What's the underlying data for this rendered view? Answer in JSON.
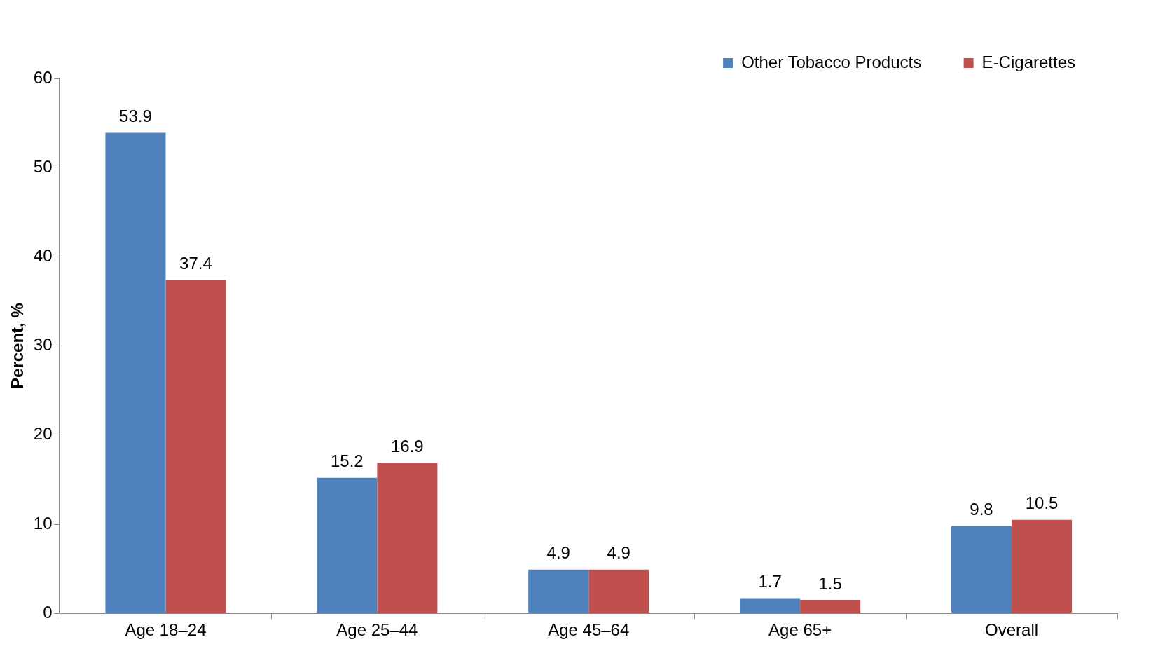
{
  "chart_data": {
    "type": "bar",
    "ylabel": "Percent, %",
    "categories": [
      "Age 18–24",
      "Age 25–44",
      "Age 45–64",
      "Age 65+",
      "Overall"
    ],
    "series": [
      {
        "name": "Other Tobacco Products",
        "color": "#4f81bd",
        "values": [
          53.9,
          15.2,
          4.9,
          1.7,
          9.8
        ]
      },
      {
        "name": "E-Cigarettes",
        "color": "#c0504d",
        "values": [
          37.4,
          16.9,
          4.9,
          1.5,
          10.5
        ]
      }
    ],
    "ylim": [
      0,
      60
    ],
    "yticks": [
      0,
      10,
      20,
      30,
      40,
      50,
      60
    ],
    "grid": false,
    "legend": "top right",
    "data_labels": true
  }
}
